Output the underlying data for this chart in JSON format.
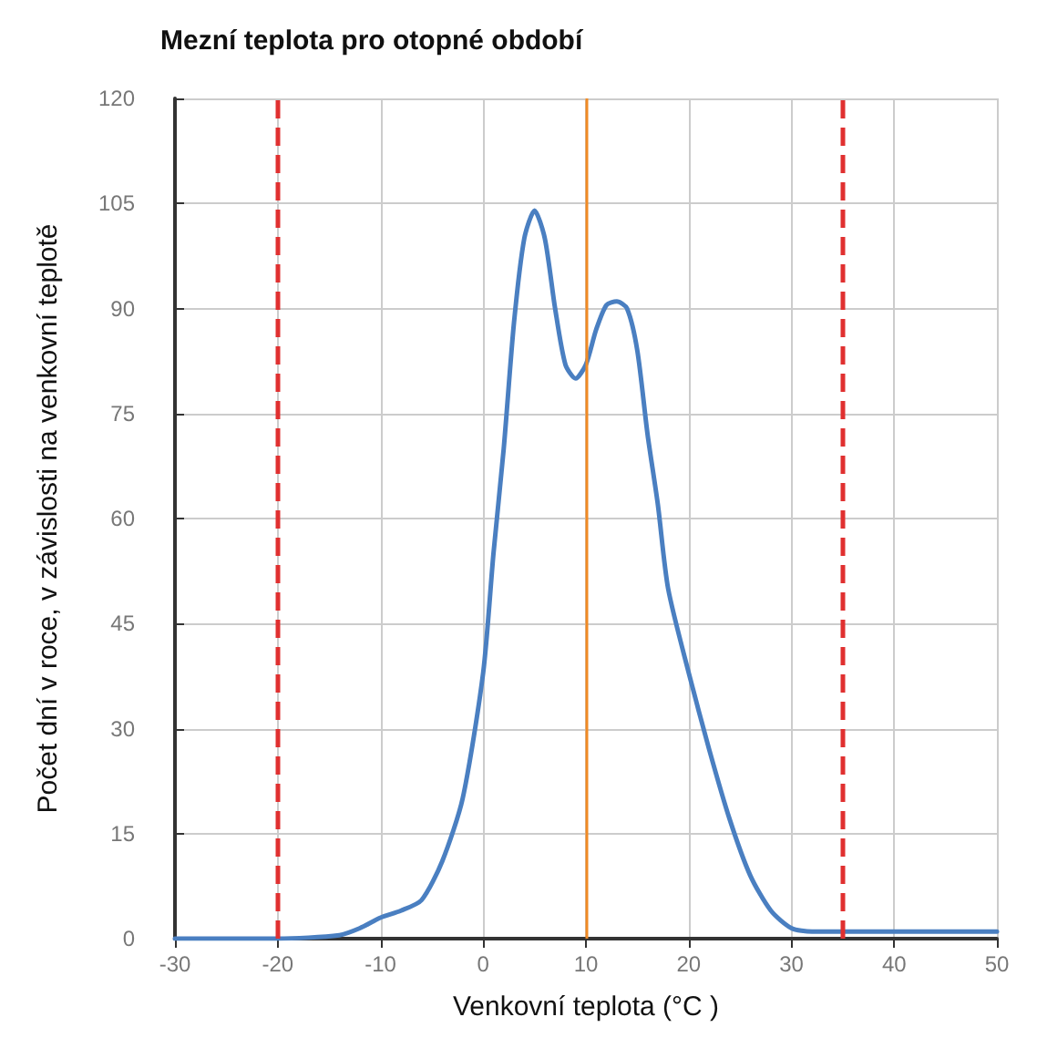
{
  "chart_data": {
    "type": "line",
    "title": "Mezní teplota pro otopné období",
    "xlabel": "Venkovní teplota (°C )",
    "ylabel": "Počet dní v roce, v závislosti na venkovní teplotě",
    "x": [
      -30,
      -20,
      -14,
      -12,
      -10,
      -8,
      -6,
      -4,
      -2,
      0,
      1,
      2,
      3,
      4,
      5,
      6,
      7,
      8,
      9,
      10,
      11,
      12,
      13,
      14,
      15,
      16,
      17,
      18,
      20,
      22,
      24,
      26,
      28,
      30,
      32,
      40,
      50
    ],
    "series": [
      {
        "color": "#4a7fc1",
        "values": [
          0,
          0,
          0.5,
          1.5,
          3,
          4,
          5.5,
          11,
          20,
          38,
          55,
          70,
          88,
          100,
          104,
          100,
          90,
          82,
          80,
          82,
          87,
          90.5,
          91,
          90,
          84,
          72,
          62,
          50,
          38,
          27,
          17,
          9,
          4,
          1.5,
          1,
          1,
          1
        ]
      }
    ],
    "xlim": [
      -30,
      50
    ],
    "xticks": [
      -30,
      -20,
      -10,
      0,
      10,
      20,
      30,
      40,
      50
    ],
    "ylim": [
      0,
      120
    ],
    "yticks": [
      0,
      15,
      30,
      45,
      60,
      75,
      90,
      105,
      120
    ],
    "ref_lines": [
      {
        "axis": "x",
        "value": -20,
        "color": "#e03030",
        "line_style": "dashed"
      },
      {
        "axis": "x",
        "value": 10,
        "color": "#f08a24",
        "line_style": "solid"
      },
      {
        "axis": "x",
        "value": 35,
        "color": "#e03030",
        "line_style": "dashed"
      }
    ],
    "grid": true,
    "marker": "none",
    "line_style": "solid"
  }
}
